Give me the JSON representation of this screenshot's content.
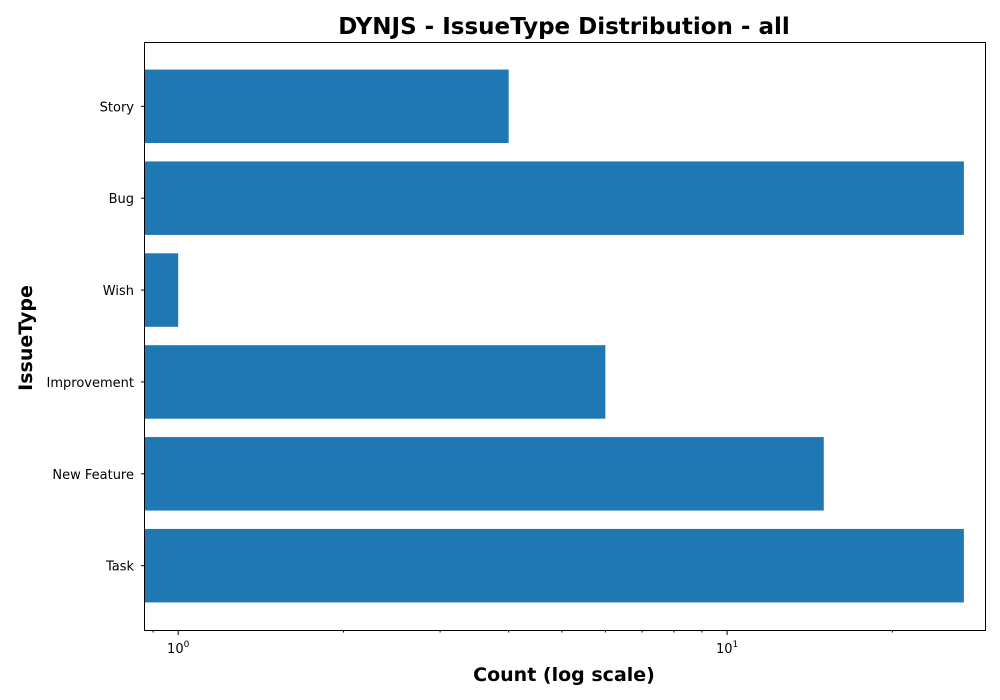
{
  "chart_data": {
    "type": "bar",
    "orientation": "horizontal",
    "title": "DYNJS - IssueType Distribution - all",
    "xlabel": "Count (log scale)",
    "ylabel": "IssueType",
    "x_scale": "log",
    "xlim": [
      0.87,
      29.5
    ],
    "categories": [
      "Story",
      "Bug",
      "Wish",
      "Improvement",
      "New Feature",
      "Task"
    ],
    "values": [
      4,
      27,
      1,
      6,
      15,
      27
    ],
    "bar_color": "#1f77b4",
    "major_ticks": [
      {
        "value": 1,
        "base": "10",
        "exp": "0"
      },
      {
        "value": 10,
        "base": "10",
        "exp": "1"
      }
    ],
    "grid": false,
    "legend": "none"
  }
}
